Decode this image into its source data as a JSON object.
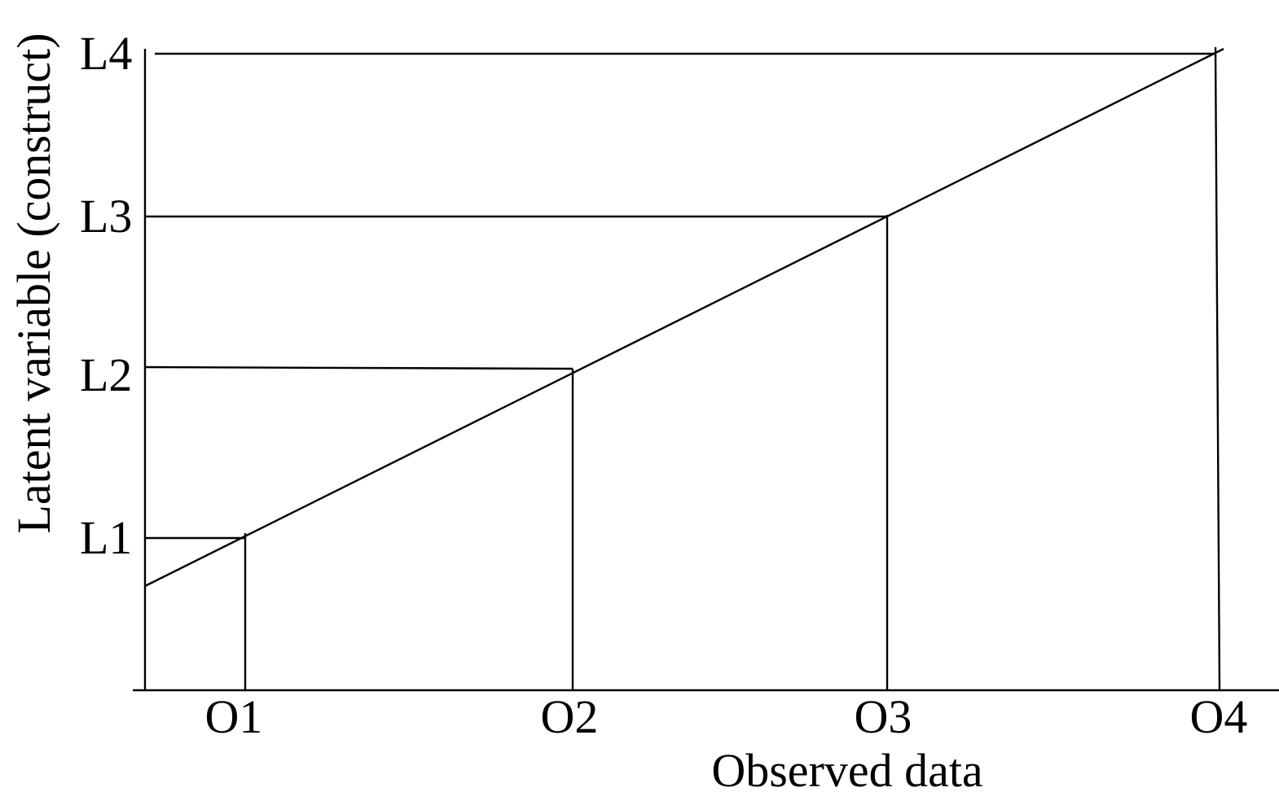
{
  "diagram": {
    "x_axis_title": "Observed data",
    "y_axis_title": "Latent variable (construct)",
    "latent_levels": [
      "L1",
      "L2",
      "L3",
      "L4"
    ],
    "observed_levels": [
      "O1",
      "O2",
      "O3",
      "O4"
    ],
    "colors": {
      "lines": "#000000",
      "text": "#000000",
      "background": "#ffffff"
    }
  }
}
